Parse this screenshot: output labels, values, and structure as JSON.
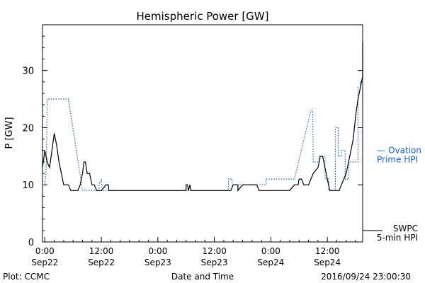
{
  "chart_data": {
    "type": "line",
    "title": "Hemispheric Power [GW]",
    "xlabel": "Date and Time",
    "ylabel": "P [GW]",
    "ylim": [
      0,
      38
    ],
    "xlim_hours": [
      -0.5,
      67.5
    ],
    "yticks": [
      0,
      10,
      20,
      30
    ],
    "xticks": [
      {
        "hour": 0,
        "time": "0:00",
        "date": "Sep22"
      },
      {
        "hour": 12,
        "time": "12:00",
        "date": "Sep22"
      },
      {
        "hour": 24,
        "time": "0:00",
        "date": "Sep23"
      },
      {
        "hour": 36,
        "time": "12:00",
        "date": "Sep23"
      },
      {
        "hour": 48,
        "time": "0:00",
        "date": "Sep24"
      },
      {
        "hour": 60,
        "time": "12:00",
        "date": "Sep24"
      }
    ],
    "grid": false,
    "series": [
      {
        "name_lines": [
          "— Ovation",
          "Prime HPI"
        ],
        "color": "#1f5fbf",
        "style": "dotted",
        "step": true,
        "points": [
          [
            -0.5,
            10
          ],
          [
            0,
            10
          ],
          [
            0.3,
            13
          ],
          [
            0.5,
            25
          ],
          [
            5,
            25
          ],
          [
            8,
            9
          ],
          [
            11.5,
            9
          ],
          [
            11.5,
            10
          ],
          [
            12,
            11
          ],
          [
            12.2,
            9
          ],
          [
            39,
            9
          ],
          [
            39,
            11
          ],
          [
            39.8,
            11
          ],
          [
            39.8,
            10
          ],
          [
            47,
            10
          ],
          [
            47,
            11
          ],
          [
            53,
            11
          ],
          [
            56.5,
            23
          ],
          [
            56.9,
            23
          ],
          [
            57,
            14
          ],
          [
            58.3,
            14
          ],
          [
            58.3,
            15
          ],
          [
            59.5,
            15
          ],
          [
            59.5,
            11
          ],
          [
            60.3,
            11
          ],
          [
            60.3,
            9
          ],
          [
            61.7,
            9
          ],
          [
            61.7,
            20
          ],
          [
            62.3,
            20
          ],
          [
            62.3,
            15
          ],
          [
            63,
            15
          ],
          [
            63,
            16
          ],
          [
            63.8,
            16
          ],
          [
            63.8,
            11
          ],
          [
            64.5,
            11
          ],
          [
            64.6,
            14
          ],
          [
            66.5,
            14
          ],
          [
            66.5,
            27
          ],
          [
            67,
            27
          ],
          [
            67,
            28
          ],
          [
            67.6,
            28
          ],
          [
            67.6,
            32
          ],
          [
            68.2,
            32
          ],
          [
            68.2,
            33
          ],
          [
            68.8,
            33
          ],
          [
            68.8,
            35
          ],
          [
            69.5,
            35
          ],
          [
            69.5,
            27
          ],
          [
            70,
            27
          ]
        ]
      },
      {
        "name_lines": [
          "SWPC",
          "5-min HPI"
        ],
        "color": "#000000",
        "style": "solid",
        "step": false,
        "points": [
          [
            -0.5,
            13
          ],
          [
            0,
            16
          ],
          [
            0.5,
            14
          ],
          [
            1,
            13
          ],
          [
            1.5,
            16
          ],
          [
            2,
            19
          ],
          [
            2.5,
            17
          ],
          [
            3,
            14
          ],
          [
            3.5,
            12
          ],
          [
            4,
            10
          ],
          [
            4.5,
            10
          ],
          [
            5,
            10
          ],
          [
            5.5,
            9
          ],
          [
            7,
            9
          ],
          [
            7.5,
            10
          ],
          [
            8,
            12
          ],
          [
            8.3,
            14
          ],
          [
            8.6,
            14
          ],
          [
            9,
            12
          ],
          [
            9.5,
            12
          ],
          [
            10,
            10
          ],
          [
            10.5,
            10
          ],
          [
            11,
            9
          ],
          [
            12,
            9
          ],
          [
            13,
            10
          ],
          [
            13.5,
            10
          ],
          [
            13.6,
            9
          ],
          [
            30,
            9
          ],
          [
            30,
            10
          ],
          [
            30.3,
            10
          ],
          [
            30.5,
            9
          ],
          [
            30.8,
            10
          ],
          [
            31,
            9
          ],
          [
            39.5,
            9
          ],
          [
            40,
            10
          ],
          [
            41,
            10
          ],
          [
            41,
            9
          ],
          [
            42,
            10
          ],
          [
            45,
            10
          ],
          [
            45.5,
            9
          ],
          [
            52,
            9
          ],
          [
            53,
            10
          ],
          [
            53.8,
            10
          ],
          [
            54,
            11
          ],
          [
            54.5,
            11
          ],
          [
            55,
            10
          ],
          [
            56,
            10
          ],
          [
            57,
            12
          ],
          [
            58,
            13
          ],
          [
            58.5,
            15
          ],
          [
            59,
            15
          ],
          [
            59.5,
            13
          ],
          [
            60,
            11
          ],
          [
            60.5,
            9
          ],
          [
            62.5,
            9
          ],
          [
            63,
            10
          ],
          [
            63.5,
            11
          ],
          [
            64,
            12
          ],
          [
            64.5,
            14
          ],
          [
            65.5,
            18
          ],
          [
            66,
            22
          ],
          [
            66.5,
            25
          ],
          [
            67,
            27
          ],
          [
            67.5,
            29
          ],
          [
            68,
            31
          ],
          [
            68.5,
            33
          ],
          [
            69,
            34
          ],
          [
            69.5,
            35
          ],
          [
            70,
            35
          ]
        ]
      }
    ]
  },
  "footer": {
    "left": "Plot: CCMC",
    "right": "2016/09/24 23:00:30"
  }
}
